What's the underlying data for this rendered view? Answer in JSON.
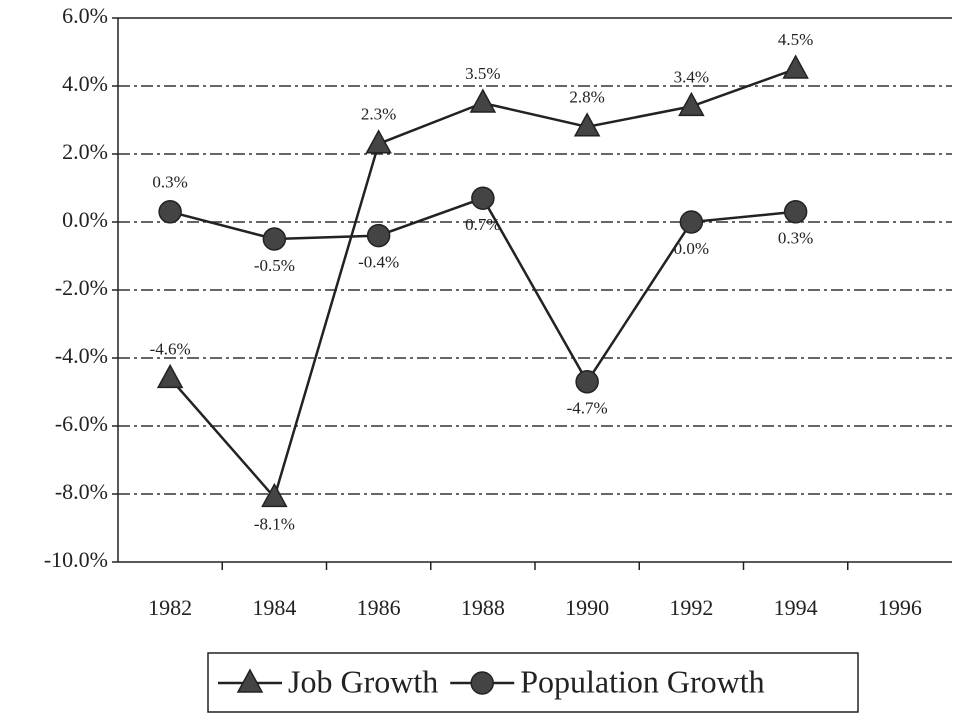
{
  "chart_data": {
    "type": "line",
    "categories": [
      "1982",
      "1984",
      "1986",
      "1988",
      "1990",
      "1992",
      "1994",
      "1996"
    ],
    "series": [
      {
        "name": "Job Growth",
        "color": "#222222",
        "marker": "triangle",
        "values": [
          -4.6,
          -8.1,
          2.3,
          3.5,
          2.8,
          3.4,
          4.5,
          null
        ],
        "value_labels": [
          "-4.6%",
          "-8.1%",
          "2.3%",
          "3.5%",
          "2.8%",
          "3.4%",
          "4.5%",
          null
        ]
      },
      {
        "name": "Population Growth",
        "color": "#222222",
        "marker": "circle",
        "values": [
          0.3,
          -0.5,
          -0.4,
          0.7,
          -4.7,
          0.0,
          0.3,
          null
        ],
        "value_labels": [
          "0.3%",
          "-0.5%",
          "-0.4%",
          "0.7%",
          "-4.7%",
          "0.0%",
          "0.3%",
          null
        ]
      }
    ],
    "ylim": [
      -10,
      6
    ],
    "yticks": [
      {
        "value": -10,
        "label": "-10.0%"
      },
      {
        "value": -8,
        "label": "-8.0%"
      },
      {
        "value": -6,
        "label": "-6.0%"
      },
      {
        "value": -4,
        "label": "-4.0%"
      },
      {
        "value": -2,
        "label": "-2.0%"
      },
      {
        "value": 0,
        "label": "0.0%"
      },
      {
        "value": 2,
        "label": "2.0%"
      },
      {
        "value": 4,
        "label": "4.0%"
      },
      {
        "value": 6,
        "label": "6.0%"
      }
    ],
    "grid": true,
    "legend": "bottom"
  }
}
